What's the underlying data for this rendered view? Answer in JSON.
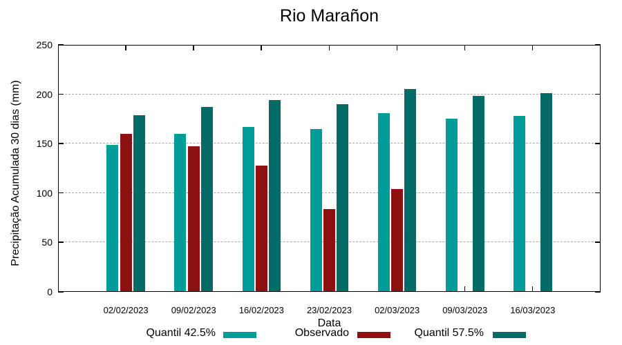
{
  "title": "Rio Marañon",
  "chart_data": {
    "type": "bar",
    "title": "Rio Marañon",
    "xlabel": "Data",
    "ylabel": "Precipitação Acumulada 30 dias (mm)",
    "ylim": [
      0,
      250
    ],
    "y_ticks": [
      0,
      50,
      100,
      150,
      200,
      250
    ],
    "grid": true,
    "grid_color": "#a6a6a6",
    "legend_position": "bottom",
    "categories": [
      "02/02/2023",
      "09/02/2023",
      "16/02/2023",
      "23/02/2023",
      "02/03/2023",
      "09/03/2023",
      "16/03/2023"
    ],
    "series": [
      {
        "key": "quantil-42-5",
        "name": "Quantil 42.5%",
        "color": "#009C9A",
        "values": [
          149,
          160,
          167,
          165,
          181,
          175,
          178
        ]
      },
      {
        "key": "observado",
        "name": "Observado",
        "color": "#8E1111",
        "values": [
          160,
          147,
          128,
          84,
          104,
          null,
          null
        ]
      },
      {
        "key": "quantil-57-5",
        "name": "Quantil 57.5%",
        "color": "#046A66",
        "values": [
          179,
          187,
          194,
          190,
          205,
          198,
          201
        ]
      }
    ]
  }
}
